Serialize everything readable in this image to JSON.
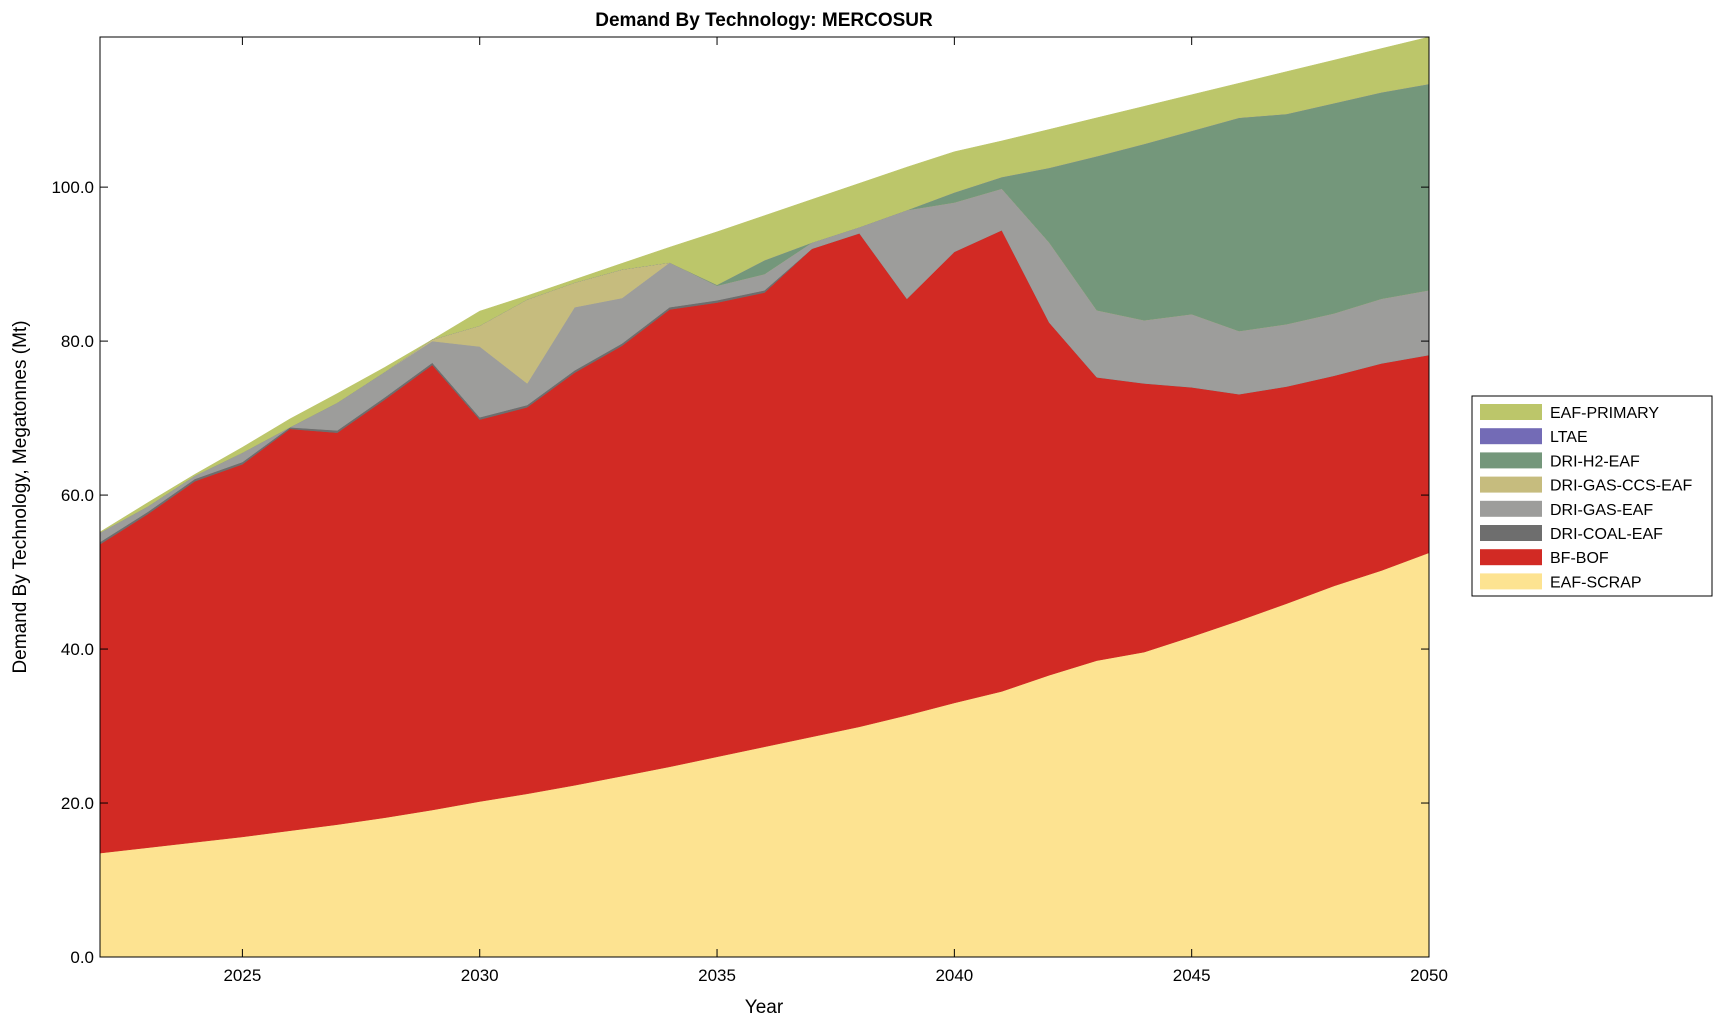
{
  "chart_data": {
    "type": "area",
    "stacked": true,
    "title": "Demand By Technology: MERCOSUR",
    "xlabel": "Year",
    "ylabel": "Demand By Technology, Megatonnes (Mt)",
    "xlim": [
      2022,
      2050
    ],
    "ylim": [
      0,
      119.5
    ],
    "xticks": [
      2025,
      2030,
      2035,
      2040,
      2045,
      2050
    ],
    "xtick_labels": [
      "2025",
      "2030",
      "2035",
      "2040",
      "2045",
      "2050"
    ],
    "yticks": [
      0,
      20,
      40,
      60,
      80,
      100
    ],
    "ytick_labels": [
      "0.0",
      "20.0",
      "40.0",
      "60.0",
      "80.0",
      "100.0"
    ],
    "grid": false,
    "legend_placement": "outside-right",
    "x": [
      2022,
      2023,
      2024,
      2025,
      2026,
      2027,
      2028,
      2029,
      2030,
      2031,
      2032,
      2033,
      2034,
      2035,
      2036,
      2037,
      2038,
      2039,
      2040,
      2041,
      2042,
      2043,
      2044,
      2045,
      2046,
      2047,
      2048,
      2049,
      2050
    ],
    "series": [
      {
        "name": "EAF-SCRAP",
        "color": "#fde391",
        "values": [
          13.5,
          14.2,
          14.9,
          15.6,
          16.4,
          17.2,
          18.1,
          19.1,
          20.2,
          21.2,
          22.3,
          23.5,
          24.7,
          26.0,
          27.3,
          28.6,
          29.9,
          31.4,
          33.0,
          34.5,
          36.6,
          38.5,
          39.6,
          41.6,
          43.7,
          45.9,
          48.2,
          50.2,
          52.5
        ]
      },
      {
        "name": "BF-BOF",
        "color": "#d22a24",
        "values": [
          40.1,
          43.3,
          46.9,
          48.4,
          52.2,
          50.9,
          54.3,
          57.8,
          49.6,
          50.2,
          53.6,
          55.9,
          59.4,
          59.0,
          59.0,
          63.4,
          64.1,
          54.1,
          58.6,
          59.9,
          45.8,
          36.8,
          34.9,
          32.4,
          29.4,
          28.2,
          27.3,
          26.9,
          25.7
        ]
      },
      {
        "name": "DRI-COAL-EAF",
        "color": "#6e6e6e",
        "values": [
          0.3,
          0.3,
          0.3,
          0.3,
          0.2,
          0.3,
          0.3,
          0.3,
          0.3,
          0.3,
          0.3,
          0.3,
          0.3,
          0.3,
          0.3,
          0,
          0,
          0,
          0,
          0,
          0,
          0,
          0,
          0,
          0,
          0,
          0,
          0,
          0
        ]
      },
      {
        "name": "DRI-GAS-EAF",
        "color": "#9d9d9b",
        "values": [
          1.2,
          0.7,
          0.4,
          1.2,
          0,
          3.6,
          3.3,
          2.8,
          9.2,
          2.8,
          8.2,
          5.9,
          5.8,
          1.9,
          2.1,
          0.8,
          0.8,
          11.5,
          6.4,
          5.4,
          10.4,
          8.7,
          8.2,
          9.5,
          8.2,
          8.1,
          8.1,
          8.4,
          8.4
        ]
      },
      {
        "name": "DRI-GAS-CCS-EAF",
        "color": "#c6bc7e",
        "values": [
          0,
          0,
          0,
          0,
          0,
          0,
          0,
          0.2,
          2.7,
          10.9,
          3.2,
          3.7,
          0,
          0,
          0,
          0,
          0,
          0,
          0,
          0,
          0,
          0,
          0,
          0,
          0,
          0,
          0,
          0,
          0
        ]
      },
      {
        "name": "DRI-H2-EAF",
        "color": "#74977b",
        "values": [
          0,
          0,
          0,
          0,
          0,
          0,
          0,
          0,
          0,
          0,
          0,
          0,
          0,
          0.1,
          1.8,
          0,
          0,
          0,
          1.3,
          1.5,
          9.7,
          20.0,
          22.9,
          23.8,
          27.7,
          27.3,
          27.3,
          26.8,
          26.8
        ]
      },
      {
        "name": "LTAE",
        "color": "#736bb6",
        "values": [
          0,
          0,
          0,
          0,
          0,
          0,
          0,
          0,
          0,
          0,
          0,
          0,
          0,
          0,
          0,
          0,
          0,
          0,
          0,
          0,
          0,
          0,
          0,
          0,
          0,
          0,
          0,
          0,
          0
        ]
      },
      {
        "name": "EAF-PRIMARY",
        "color": "#bcc66a",
        "values": [
          0.1,
          0.5,
          0.2,
          0.7,
          1.1,
          1.2,
          0.6,
          0,
          1.9,
          0.5,
          0.4,
          0.8,
          2.0,
          6.9,
          5.8,
          5.6,
          5.7,
          5.6,
          5.3,
          4.7,
          5.0,
          5.0,
          4.9,
          4.7,
          4.5,
          5.5,
          5.6,
          5.7,
          6.1
        ]
      }
    ]
  }
}
